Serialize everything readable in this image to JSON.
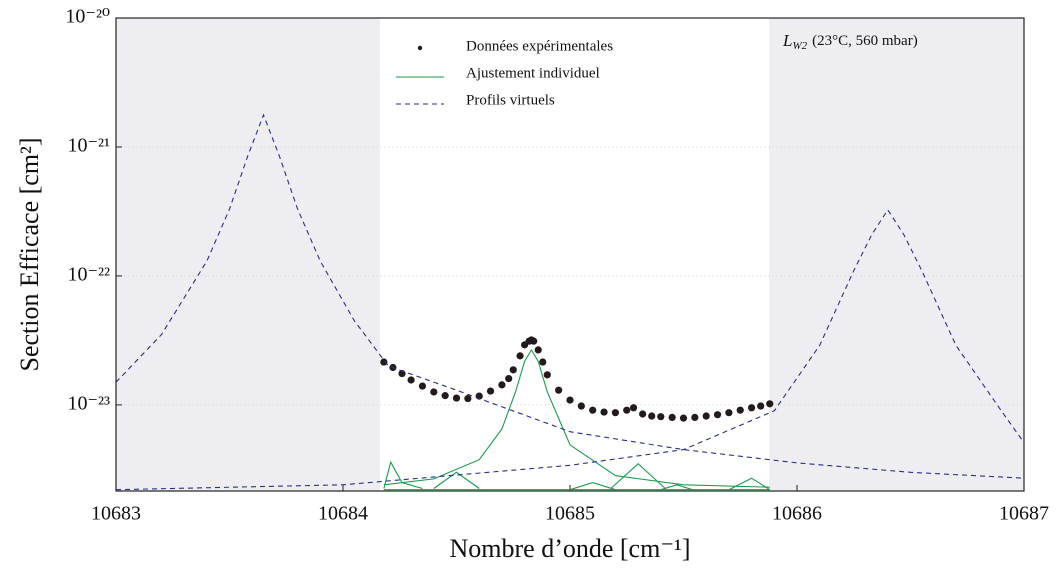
{
  "chart_data": {
    "type": "line",
    "xlabel": "Nombre d’onde [cm⁻¹]",
    "ylabel": "Section Efficace [cm²]",
    "annotation": [
      "L",
      "W2",
      "(23°C, 560 mbar)"
    ],
    "xlim": [
      10683,
      10687
    ],
    "xticks": [
      10683,
      10684,
      10685,
      10686,
      10687
    ],
    "ylim": [
      2.15e-24,
      1e-20
    ],
    "yticks": [
      {
        "value": 1e-20,
        "label": "10⁻²⁰"
      },
      {
        "value": 1e-21,
        "label": "10⁻²¹"
      },
      {
        "value": 1e-22,
        "label": "10⁻²²"
      },
      {
        "value": 1e-23,
        "label": "10⁻²³"
      }
    ],
    "log_y": true,
    "grid": true,
    "legend": "upper center",
    "shaded_regions": [
      [
        10683,
        10684.163
      ],
      [
        10685.877,
        10687
      ]
    ],
    "shade_color": "#eeeef2",
    "series": [
      {
        "name": "Données expérimentales",
        "style": "scatter",
        "color": "#231a1c",
        "x": [
          10684.18,
          10684.22,
          10684.26,
          10684.3,
          10684.35,
          10684.4,
          10684.45,
          10684.5,
          10684.55,
          10684.6,
          10684.65,
          10684.7,
          10684.73,
          10684.75,
          10684.78,
          10684.8,
          10684.82,
          10684.83,
          10684.84,
          10684.86,
          10684.88,
          10684.9,
          10684.95,
          10685.0,
          10685.05,
          10685.1,
          10685.15,
          10685.2,
          10685.25,
          10685.28,
          10685.32,
          10685.36,
          10685.4,
          10685.45,
          10685.5,
          10685.55,
          10685.6,
          10685.65,
          10685.7,
          10685.75,
          10685.8,
          10685.84,
          10685.88
        ],
        "values": [
          2.15e-23,
          1.95e-23,
          1.75e-23,
          1.56e-23,
          1.4e-23,
          1.26e-23,
          1.18e-23,
          1.13e-23,
          1.12e-23,
          1.17e-23,
          1.28e-23,
          1.43e-23,
          1.6e-23,
          1.87e-23,
          2.4e-23,
          2.92e-23,
          3.12e-23,
          3.19e-23,
          3.12e-23,
          2.67e-23,
          2.15e-23,
          1.71e-23,
          1.3e-23,
          1.09e-23,
          9.8e-24,
          9.1e-24,
          8.8e-24,
          8.7e-24,
          9.1e-24,
          9.5e-24,
          8.5e-24,
          8.2e-24,
          8.1e-24,
          8e-24,
          7.9e-24,
          8e-24,
          8.2e-24,
          8.4e-24,
          8.7e-24,
          9.1e-24,
          9.5e-24,
          9.8e-24,
          1.02e-23
        ]
      },
      {
        "name": "Ajustement individuel",
        "style": "line",
        "color": "#1d9a4e",
        "x": [
          10684.18,
          10684.4,
          10684.6,
          10684.7,
          10684.76,
          10684.8,
          10684.83,
          10684.86,
          10684.9,
          10685.0,
          10685.2,
          10685.5,
          10685.88,
          null,
          10684.18,
          10684.21,
          10684.26,
          10684.35,
          null,
          10684.4,
          10684.5,
          10684.6,
          null,
          10685.0,
          10685.1,
          10685.2,
          null,
          10685.18,
          10685.3,
          10685.42,
          null,
          10685.4,
          10685.47,
          10685.54,
          null,
          10685.7,
          10685.8,
          10685.88,
          null,
          10684.18,
          10685.88
        ],
        "values": [
          2.4e-24,
          2.67e-24,
          3.76e-24,
          6.5e-24,
          1.26e-23,
          2.18e-23,
          2.67e-23,
          2.18e-23,
          1.26e-23,
          4.9e-24,
          2.83e-24,
          2.4e-24,
          2.3e-24,
          null,
          2.25e-24,
          3.6e-24,
          2.5e-24,
          2.25e-24,
          null,
          2.25e-24,
          3e-24,
          2.25e-24,
          null,
          2.2e-24,
          2.5e-24,
          2.2e-24,
          null,
          2.25e-24,
          3.5e-24,
          2.25e-24,
          null,
          2.2e-24,
          2.4e-24,
          2.2e-24,
          null,
          2.2e-24,
          2.7e-24,
          2.2e-24,
          null,
          2.2e-24,
          2.2e-24
        ]
      },
      {
        "name": "Profils virtuels",
        "style": "dashed",
        "color": "#2b2e8c",
        "x": [
          10683,
          10683.2,
          10683.4,
          10683.5,
          10683.58,
          10683.65,
          10683.72,
          10683.8,
          10683.9,
          10684.05,
          10684.2,
          10684.5,
          10685,
          10685.5,
          10686,
          10686.5,
          10687,
          null,
          10683,
          10684,
          10685,
          10685.5,
          10685.9,
          10686.1,
          10686.25,
          10686.33,
          10686.4,
          10686.47,
          10686.55,
          10686.7,
          10686.9,
          10687
        ],
        "values": [
          1.5e-23,
          3.5e-23,
          1.3e-22,
          3.3e-22,
          8.5e-22,
          1.77e-21,
          8.5e-22,
          3.3e-22,
          1.3e-22,
          4.5e-23,
          2e-23,
          1.3e-23,
          6.2e-24,
          4.5e-24,
          3.55e-24,
          3e-24,
          2.7e-24,
          null,
          2.2e-24,
          2.4e-24,
          3.4e-24,
          4.5e-24,
          9e-24,
          2.9e-23,
          1.1e-22,
          2.1e-22,
          3.25e-22,
          2.1e-22,
          1.1e-22,
          2.9e-23,
          9e-24,
          5.1e-24
        ]
      }
    ]
  }
}
